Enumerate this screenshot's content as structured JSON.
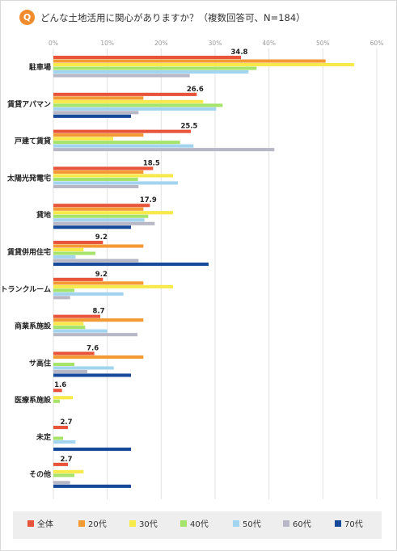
{
  "header": {
    "badge": "Q",
    "title": "どんな土地活用に関心がありますか？（複数回答可、N=184）"
  },
  "chart_data": {
    "type": "bar",
    "orientation": "horizontal",
    "xlim": [
      0,
      60
    ],
    "x_ticks": [
      "0%",
      "10%",
      "20%",
      "30%",
      "40%",
      "50%",
      "60%"
    ],
    "grid": true,
    "legend_position": "bottom",
    "categories": [
      "駐車場",
      "賃貸アパマン",
      "戸建て賃貸",
      "太陽光発電宅",
      "貸地",
      "賃貸併用住宅",
      "トランクルーム",
      "商業系施設",
      "サ高住",
      "医療系施設",
      "未定",
      "その他"
    ],
    "total_labels": [
      "34.8",
      "26.6",
      "25.5",
      "18.5",
      "17.9",
      "9.2",
      "9.2",
      "8.7",
      "7.6",
      "1.6",
      "2.7",
      "2.7"
    ],
    "series": [
      {
        "name": "全体",
        "color": "#e8543a",
        "values": [
          34.8,
          26.6,
          25.5,
          18.5,
          17.9,
          9.2,
          9.2,
          8.7,
          7.6,
          1.6,
          2.7,
          2.7
        ]
      },
      {
        "name": "20代",
        "color": "#f39a35",
        "values": [
          50.5,
          16.7,
          16.7,
          16.7,
          16.7,
          16.7,
          16.7,
          16.7,
          16.7,
          0,
          0,
          0
        ]
      },
      {
        "name": "30代",
        "color": "#f7e94a",
        "values": [
          55.8,
          27.8,
          11.1,
          22.2,
          22.2,
          5.6,
          22.2,
          5.6,
          0,
          3.6,
          0,
          5.6
        ]
      },
      {
        "name": "40代",
        "color": "#a6e36a",
        "values": [
          37.7,
          31.4,
          23.5,
          15.7,
          17.6,
          7.8,
          3.9,
          5.9,
          3.9,
          1.2,
          1.8,
          3.9
        ]
      },
      {
        "name": "50代",
        "color": "#a3d4ef",
        "values": [
          36.2,
          30.2,
          26.0,
          23.1,
          16.9,
          4.1,
          13.0,
          10.0,
          11.2,
          0,
          4.1,
          0
        ]
      },
      {
        "name": "60代",
        "color": "#b7b7c6",
        "values": [
          25.3,
          15.8,
          41.0,
          15.8,
          18.8,
          15.8,
          3.1,
          15.6,
          6.3,
          0,
          0,
          3.1
        ]
      },
      {
        "name": "70代",
        "color": "#17499a",
        "values": [
          0,
          14.4,
          0,
          0,
          14.4,
          28.8,
          0,
          0,
          14.4,
          0,
          14.4,
          14.4
        ]
      }
    ]
  }
}
